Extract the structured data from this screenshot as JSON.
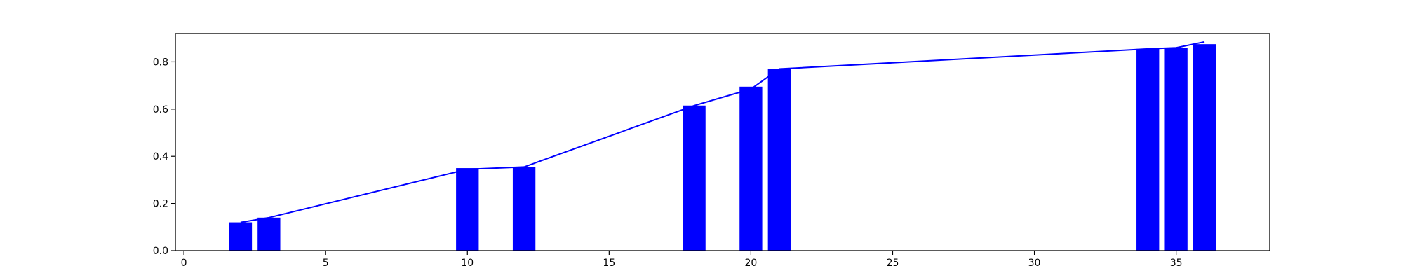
{
  "chart_data": {
    "type": "bar",
    "title": "",
    "xlabel": "",
    "ylabel": "",
    "xlim": [
      -0.3,
      38.3
    ],
    "ylim": [
      0,
      0.92
    ],
    "xticks": [
      0,
      5,
      10,
      15,
      20,
      25,
      30,
      35
    ],
    "yticks": [
      0.0,
      0.2,
      0.4,
      0.6,
      0.8
    ],
    "grid": false,
    "legend": "none",
    "bar_color": "#0000ff",
    "line_color": "#0000ff",
    "bar_width": 0.8,
    "bars": [
      {
        "x": 2,
        "value": 0.12
      },
      {
        "x": 3,
        "value": 0.14
      },
      {
        "x": 10,
        "value": 0.35
      },
      {
        "x": 12,
        "value": 0.355
      },
      {
        "x": 18,
        "value": 0.615
      },
      {
        "x": 20,
        "value": 0.695
      },
      {
        "x": 21,
        "value": 0.77
      },
      {
        "x": 34,
        "value": 0.855
      },
      {
        "x": 35,
        "value": 0.86
      },
      {
        "x": 36,
        "value": 0.875
      }
    ],
    "line": [
      {
        "x": 2,
        "y": 0.12
      },
      {
        "x": 3,
        "y": 0.14
      },
      {
        "x": 10,
        "y": 0.345
      },
      {
        "x": 12,
        "y": 0.355
      },
      {
        "x": 18,
        "y": 0.615
      },
      {
        "x": 20,
        "y": 0.685
      },
      {
        "x": 21,
        "y": 0.77
      },
      {
        "x": 34,
        "y": 0.855
      },
      {
        "x": 35,
        "y": 0.86
      },
      {
        "x": 36,
        "y": 0.885
      }
    ]
  }
}
